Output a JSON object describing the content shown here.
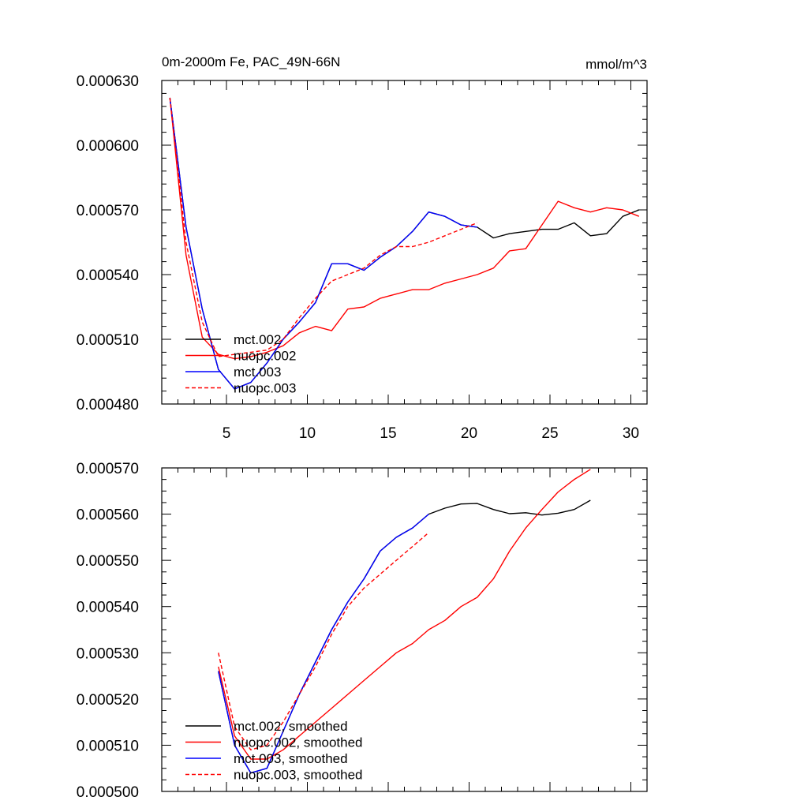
{
  "chart_data": [
    {
      "type": "line",
      "title": "0m-2000m Fe, PAC_49N-66N",
      "units": "mmol/m^3",
      "xlim": [
        1,
        31
      ],
      "ylim": [
        0.00048,
        0.00063
      ],
      "xticks": [
        5,
        10,
        15,
        20,
        25,
        30
      ],
      "xtick_labels": [
        "5",
        "10",
        "15",
        "20",
        "25",
        "30"
      ],
      "yticks": [
        0.00048,
        0.00051,
        0.00054,
        0.00057,
        0.0006,
        0.00063
      ],
      "ytick_labels": [
        "0.000480",
        "0.000510",
        "0.000540",
        "0.000570",
        "0.000600",
        "0.000630"
      ],
      "legend_position": "bottom-left",
      "series": [
        {
          "name": "mct.002",
          "color": "#000000",
          "dash": false,
          "x": [
            1.5,
            2.5,
            3.5,
            4.5,
            5.5,
            6.5,
            7.5,
            8.5,
            9.5,
            10.5,
            11.5,
            12.5,
            13.5,
            14.5,
            15.5,
            16.5,
            17.5,
            18.5,
            19.5,
            20.5,
            21.5,
            22.5,
            23.5,
            24.5,
            25.5,
            26.5,
            27.5,
            28.5,
            29.5,
            30.5
          ],
          "values": [
            0.000622,
            0.000562,
            0.000524,
            0.000496,
            0.000487,
            0.00049,
            0.000499,
            0.00051,
            0.000518,
            0.000527,
            0.000545,
            0.000545,
            0.000542,
            0.000548,
            0.000553,
            0.00056,
            0.000569,
            0.000567,
            0.000563,
            0.000562,
            0.000557,
            0.000559,
            0.00056,
            0.000561,
            0.000561,
            0.000564,
            0.000558,
            0.000559,
            0.000567,
            0.00057
          ]
        },
        {
          "name": "nuopc.002",
          "color": "#ff0000",
          "dash": false,
          "x": [
            1.5,
            2.5,
            3.5,
            4.5,
            5.5,
            6.5,
            7.5,
            8.5,
            9.5,
            10.5,
            11.5,
            12.5,
            13.5,
            14.5,
            15.5,
            16.5,
            17.5,
            18.5,
            19.5,
            20.5,
            21.5,
            22.5,
            23.5,
            24.5,
            25.5,
            26.5,
            27.5,
            28.5,
            29.5,
            30.5
          ],
          "values": [
            0.000622,
            0.000549,
            0.000511,
            0.000503,
            0.000501,
            0.000502,
            0.000504,
            0.000507,
            0.000513,
            0.000516,
            0.000514,
            0.000524,
            0.000525,
            0.000529,
            0.000531,
            0.000533,
            0.000533,
            0.000536,
            0.000538,
            0.00054,
            0.000543,
            0.000551,
            0.000552,
            0.000563,
            0.000574,
            0.000571,
            0.000569,
            0.000571,
            0.00057,
            0.000567
          ]
        },
        {
          "name": "mct.003",
          "color": "#0000ff",
          "dash": false,
          "x": [
            1.5,
            2.5,
            3.5,
            4.5,
            5.5,
            6.5,
            7.5,
            8.5,
            9.5,
            10.5,
            11.5,
            12.5,
            13.5,
            14.5,
            15.5,
            16.5,
            17.5,
            18.5,
            19.5,
            20.5
          ],
          "values": [
            0.000622,
            0.000562,
            0.000524,
            0.000496,
            0.000487,
            0.00049,
            0.000499,
            0.00051,
            0.000518,
            0.000527,
            0.000545,
            0.000545,
            0.000542,
            0.000548,
            0.000553,
            0.00056,
            0.000569,
            0.000567,
            0.000563,
            0.000562
          ]
        },
        {
          "name": "nuopc.003",
          "color": "#ff0000",
          "dash": true,
          "x": [
            1.5,
            2.5,
            3.5,
            4.5,
            5.5,
            6.5,
            7.5,
            8.5,
            9.5,
            10.5,
            11.5,
            12.5,
            13.5,
            14.5,
            15.5,
            16.5,
            17.5,
            18.5,
            19.5,
            20.5
          ],
          "values": [
            0.000622,
            0.000555,
            0.000518,
            0.000502,
            0.000503,
            0.000504,
            0.000505,
            0.00051,
            0.00052,
            0.000529,
            0.000537,
            0.00054,
            0.000543,
            0.000549,
            0.000553,
            0.000553,
            0.000555,
            0.000558,
            0.000561,
            0.000564
          ]
        }
      ]
    },
    {
      "type": "line",
      "title": "",
      "units": "",
      "xlim": [
        1,
        31
      ],
      "ylim": [
        0.0005,
        0.00057
      ],
      "xticks": [
        5,
        10,
        15,
        20,
        25,
        30
      ],
      "xtick_labels": [],
      "yticks": [
        0.0005,
        0.00051,
        0.00052,
        0.00053,
        0.00054,
        0.00055,
        0.00056,
        0.00057
      ],
      "ytick_labels": [
        "0.000500",
        "0.000510",
        "0.000520",
        "0.000530",
        "0.000540",
        "0.000550",
        "0.000560",
        "0.000570"
      ],
      "legend_position": "bottom-left",
      "series": [
        {
          "name": "mct.002, smoothed",
          "color": "#000000",
          "dash": false,
          "x": [
            4.5,
            5.5,
            6.5,
            7.5,
            8.5,
            9.5,
            10.5,
            11.5,
            12.5,
            13.5,
            14.5,
            15.5,
            16.5,
            17.5,
            18.5,
            19.5,
            20.5,
            21.5,
            22.5,
            23.5,
            24.5,
            25.5,
            26.5,
            27.5
          ],
          "values": [
            0.000526,
            0.00051,
            0.000504,
            0.000505,
            0.000513,
            0.000521,
            0.000528,
            0.000535,
            0.000541,
            0.000546,
            0.000552,
            0.000555,
            0.000557,
            0.00056,
            0.0005613,
            0.0005622,
            0.0005623,
            0.000561,
            0.0005601,
            0.0005603,
            0.0005598,
            0.0005602,
            0.000561,
            0.000563
          ]
        },
        {
          "name": "nuopc.002, smoothed",
          "color": "#ff0000",
          "dash": false,
          "x": [
            4.5,
            5.5,
            6.5,
            7.5,
            8.5,
            9.5,
            10.5,
            11.5,
            12.5,
            13.5,
            14.5,
            15.5,
            16.5,
            17.5,
            18.5,
            19.5,
            20.5,
            21.5,
            22.5,
            23.5,
            24.5,
            25.5,
            26.5,
            27.5
          ],
          "values": [
            0.000527,
            0.000512,
            0.000507,
            0.000507,
            0.000509,
            0.000512,
            0.000515,
            0.000518,
            0.000521,
            0.000524,
            0.000527,
            0.00053,
            0.000532,
            0.000535,
            0.000537,
            0.00054,
            0.000542,
            0.000546,
            0.000552,
            0.000557,
            0.000561,
            0.0005648,
            0.0005675,
            0.0005697
          ]
        },
        {
          "name": "mct.003, smoothed",
          "color": "#0000ff",
          "dash": false,
          "x": [
            4.5,
            5.5,
            6.5,
            7.5,
            8.5,
            9.5,
            10.5,
            11.5,
            12.5,
            13.5,
            14.5,
            15.5,
            16.5,
            17.5
          ],
          "values": [
            0.000526,
            0.00051,
            0.000504,
            0.000505,
            0.000513,
            0.000521,
            0.000528,
            0.000535,
            0.000541,
            0.000546,
            0.000552,
            0.000555,
            0.000557,
            0.00056
          ]
        },
        {
          "name": "nuopc.003, smoothed",
          "color": "#ff0000",
          "dash": true,
          "x": [
            4.5,
            5.5,
            6.5,
            7.5,
            8.5,
            9.5,
            10.5,
            11.5,
            12.5,
            13.5,
            14.5,
            15.5,
            16.5,
            17.5
          ],
          "values": [
            0.00053,
            0.000514,
            0.000509,
            0.00051,
            0.000515,
            0.000521,
            0.000527,
            0.000534,
            0.00054,
            0.000544,
            0.000547,
            0.00055,
            0.000553,
            0.000556
          ]
        }
      ]
    }
  ]
}
